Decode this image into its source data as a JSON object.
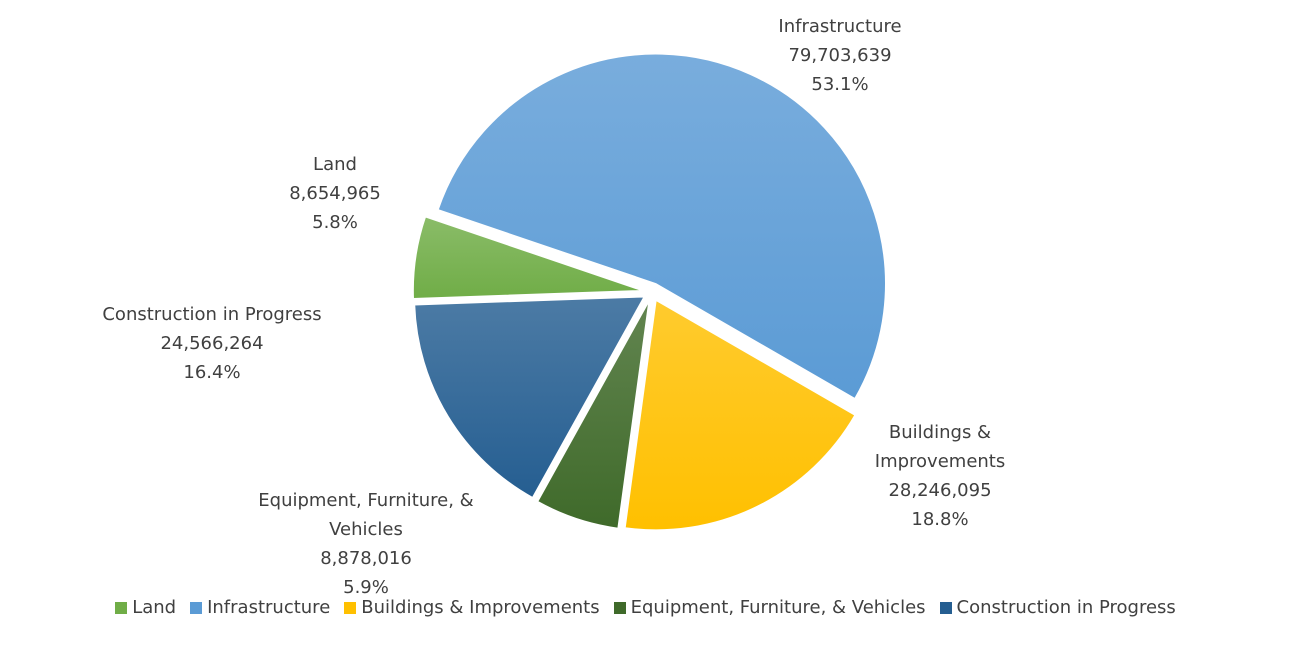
{
  "chart_data": {
    "type": "pie",
    "categories": [
      "Land",
      "Infrastructure",
      "Buildings & Improvements",
      "Equipment, Furniture, & Vehicles",
      "Construction in Progress"
    ],
    "values": [
      8654965,
      79703639,
      28246095,
      8878016,
      24566264
    ],
    "value_labels": [
      "8,654,965",
      "79,703,639",
      "28,246,095",
      "8,878,016",
      "24,566,264"
    ],
    "percentage_labels": [
      "5.8%",
      "53.1%",
      "18.8%",
      "5.9%",
      "16.4%"
    ],
    "colors": [
      "#70ad47",
      "#5b9bd5",
      "#ffc000",
      "#3f6a2a",
      "#255e91"
    ],
    "legend": "bottom"
  }
}
